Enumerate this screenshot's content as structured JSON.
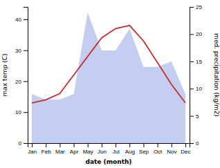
{
  "chart_data": {
    "type": "line",
    "categories": [
      "Jan",
      "Feb",
      "Mar",
      "Apr",
      "May",
      "Jun",
      "Jul",
      "Aug",
      "Sep",
      "Oct",
      "Nov",
      "Dec"
    ],
    "xlabel": "date (month)",
    "ylabel": "max temp (C)",
    "y2label": "med. precipitation (kg/m2)",
    "series": [
      {
        "type": "area",
        "axis": "y2",
        "color": "#c5cef0",
        "values": [
          9,
          8,
          8,
          9,
          24,
          17,
          17,
          21,
          14,
          14,
          15,
          9
        ]
      },
      {
        "type": "line",
        "color": "#c03030",
        "values": [
          13,
          14,
          16,
          22,
          28,
          34,
          37,
          38,
          33,
          26,
          19,
          13
        ]
      }
    ],
    "ylim": [
      0,
      44
    ],
    "yticks": [
      0,
      10,
      20,
      30,
      40
    ],
    "y2lim": [
      0,
      25
    ],
    "y2ticks": [
      0,
      5,
      10,
      15,
      20,
      25
    ],
    "grid": false
  }
}
